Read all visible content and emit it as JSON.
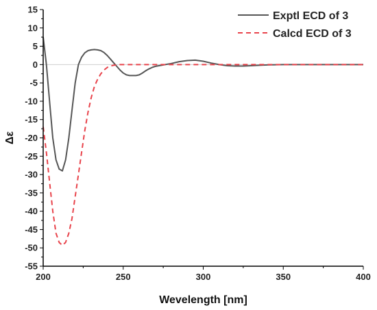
{
  "chart_data": {
    "type": "line",
    "title": "",
    "xlabel": "Wevelength [nm]",
    "ylabel": "Δε",
    "xlim": [
      200,
      400
    ],
    "ylim": [
      -55,
      15
    ],
    "xticks": [
      200,
      250,
      300,
      350,
      400
    ],
    "yticks": [
      15,
      10,
      5,
      0,
      -5,
      -10,
      -15,
      -20,
      -25,
      -30,
      -35,
      -40,
      -45,
      -50,
      -55
    ],
    "grid": false,
    "zero_line": true,
    "legend_position": "top-right",
    "series": [
      {
        "name": "Exptl ECD of 3",
        "color": "#555555",
        "style": "solid",
        "x": [
          200,
          202,
          204,
          206,
          208,
          210,
          212,
          214,
          216,
          218,
          220,
          222,
          224,
          226,
          228,
          230,
          232,
          234,
          236,
          238,
          240,
          242,
          244,
          246,
          248,
          250,
          252,
          254,
          256,
          258,
          260,
          262,
          264,
          266,
          268,
          270,
          275,
          280,
          285,
          290,
          295,
          300,
          305,
          310,
          315,
          320,
          325,
          330,
          335,
          340,
          350,
          360,
          370,
          380,
          390,
          400
        ],
        "y": [
          7.5,
          0,
          -10,
          -20,
          -26,
          -28.5,
          -29,
          -26,
          -20,
          -12.5,
          -5,
          0,
          2,
          3.2,
          3.8,
          4,
          4.1,
          4,
          3.8,
          3.3,
          2.5,
          1.5,
          0.5,
          -0.5,
          -1.5,
          -2.3,
          -2.8,
          -3,
          -3,
          -3,
          -2.8,
          -2.3,
          -1.7,
          -1.2,
          -0.8,
          -0.5,
          -0.1,
          0.3,
          0.8,
          1.1,
          1.2,
          0.9,
          0.4,
          0,
          -0.3,
          -0.4,
          -0.4,
          -0.3,
          -0.2,
          -0.1,
          0,
          0,
          0,
          0,
          0,
          0
        ]
      },
      {
        "name": "Calcd ECD of 3",
        "color": "#e8424a",
        "style": "dashed",
        "x": [
          200,
          202,
          204,
          206,
          208,
          210,
          212,
          214,
          216,
          218,
          220,
          222,
          224,
          226,
          228,
          230,
          232,
          234,
          236,
          238,
          240,
          242,
          244,
          246,
          248,
          250,
          255,
          260,
          270,
          280,
          290,
          300,
          320,
          340,
          360,
          380,
          400
        ],
        "y": [
          -17,
          -24,
          -32,
          -40,
          -46,
          -48.5,
          -49.3,
          -48.5,
          -46,
          -42,
          -36,
          -30,
          -24,
          -18,
          -13,
          -9,
          -6,
          -4,
          -2.5,
          -1.5,
          -0.8,
          -0.4,
          -0.2,
          -0.1,
          0,
          0,
          0,
          0,
          0,
          0,
          0,
          0,
          0,
          0,
          0,
          0,
          0
        ]
      }
    ]
  }
}
